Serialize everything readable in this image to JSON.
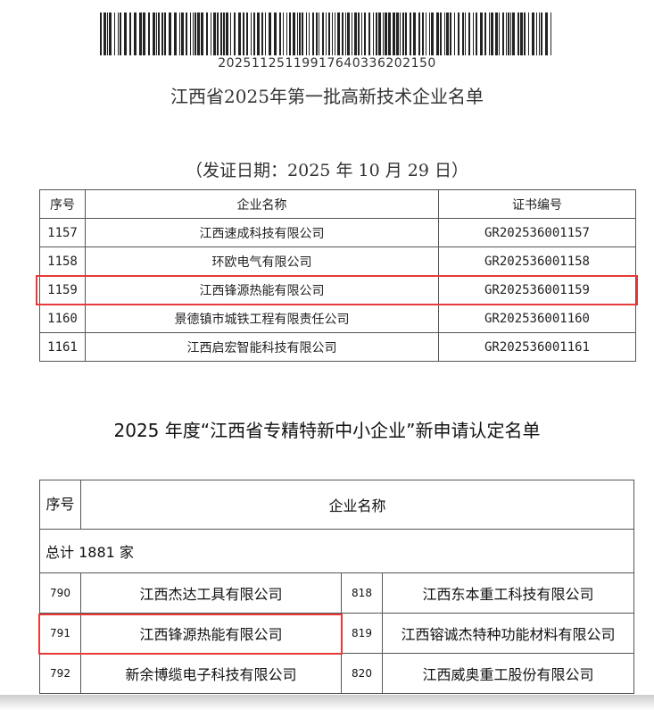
{
  "barcode_number": "20251125119917640336202150",
  "doc1": {
    "title": "江西省2025年第一批高新技术企业名单",
    "date": "（发证日期：2025 年 10 月 29 日）",
    "headers": [
      "序号",
      "企业名称",
      "证书编号"
    ],
    "rows": [
      [
        "1157",
        "江西速成科技有限公司",
        "GR202536001157"
      ],
      [
        "1158",
        "环欧电气有限公司",
        "GR202536001158"
      ],
      [
        "1159",
        "江西锋源热能有限公司",
        "GR202536001159"
      ],
      [
        "1160",
        "景德镇市城铁工程有限责任公司",
        "GR202536001160"
      ],
      [
        "1161",
        "江西启宏智能科技有限公司",
        "GR202536001161"
      ]
    ],
    "highlighted_row": "1159"
  },
  "doc2": {
    "title": "2025 年度“江西省专精特新中小企业”新申请认定名单",
    "headers": [
      "序号",
      "企业名称"
    ],
    "total": "总计 1881 家",
    "rows": [
      [
        "790",
        "江西杰达工具有限公司",
        "818",
        "江西东本重工科技有限公司"
      ],
      [
        "791",
        "江西锋源热能有限公司",
        "819",
        "江西镕诚杰特种功能材料有限公司"
      ],
      [
        "792",
        "新余博缆电子科技有限公司",
        "820",
        "江西威奥重工股份有限公司"
      ]
    ],
    "highlighted_row": "791"
  },
  "highlight_color": "#e83a3a"
}
